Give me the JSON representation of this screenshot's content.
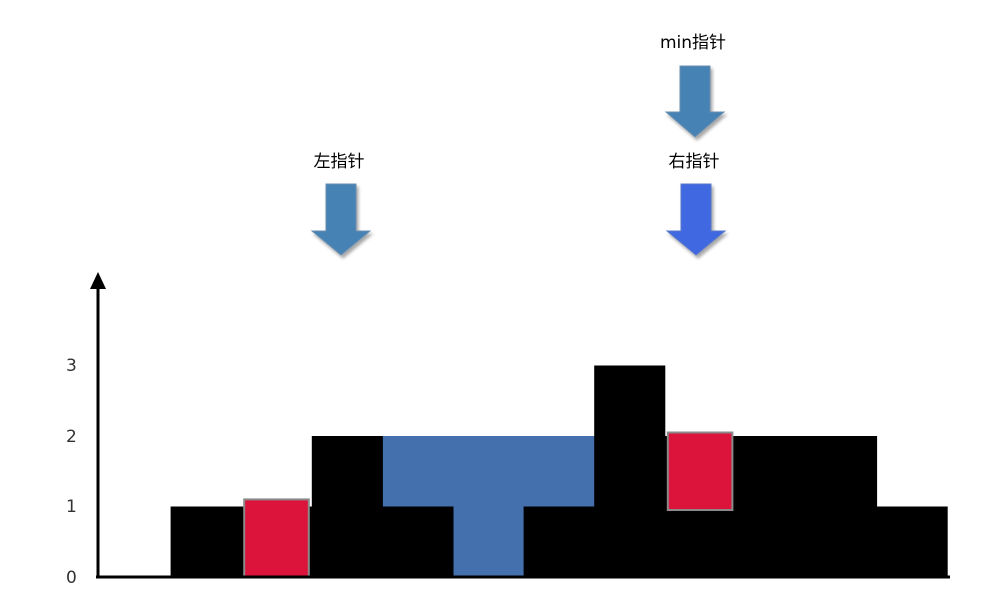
{
  "diagram": {
    "y_axis": {
      "ticks": [
        "0",
        "1",
        "2",
        "3"
      ]
    },
    "elevation": [
      0,
      1,
      1,
      2,
      1,
      0,
      1,
      3,
      2,
      2,
      2,
      1
    ],
    "water": [
      0,
      0,
      0,
      0,
      1,
      2,
      1,
      0,
      0,
      0,
      0,
      0
    ],
    "highlighted_bars": [
      {
        "index": 2,
        "bottom": 0,
        "top": 1.1
      },
      {
        "index": 8,
        "bottom": 0.95,
        "top": 2.05
      }
    ],
    "pointers": [
      {
        "label": "min指针",
        "column": 8,
        "color": "#4682B4"
      },
      {
        "label": "左指针",
        "column": 3,
        "color": "#4682B4"
      },
      {
        "label": "右指针",
        "column": 8,
        "color": "#4169E1"
      }
    ],
    "colors": {
      "bar": "#000000",
      "water": "#4470AD",
      "highlight": "#DC143C",
      "highlight_border": "#8A8A8A",
      "axis": "#000000"
    }
  }
}
